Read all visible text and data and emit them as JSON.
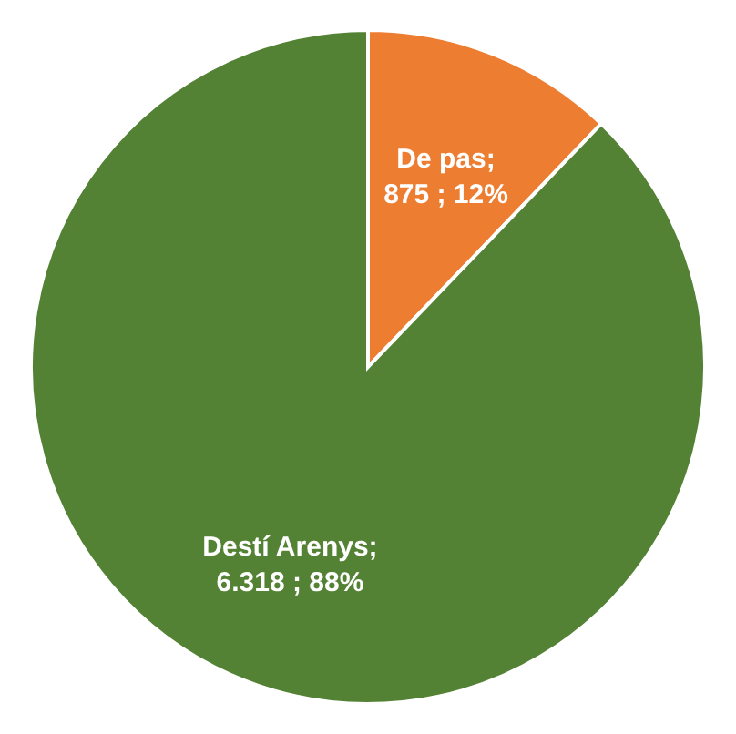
{
  "chart_data": {
    "type": "pie",
    "categories": [
      "De pas",
      "Destí Arenys"
    ],
    "values": [
      875,
      6318
    ],
    "colors": [
      "#ed7d31",
      "#548235"
    ],
    "value_labels": [
      ";\n875 ; 12%",
      ";\n6.318 ; 88%"
    ],
    "legend": false
  }
}
